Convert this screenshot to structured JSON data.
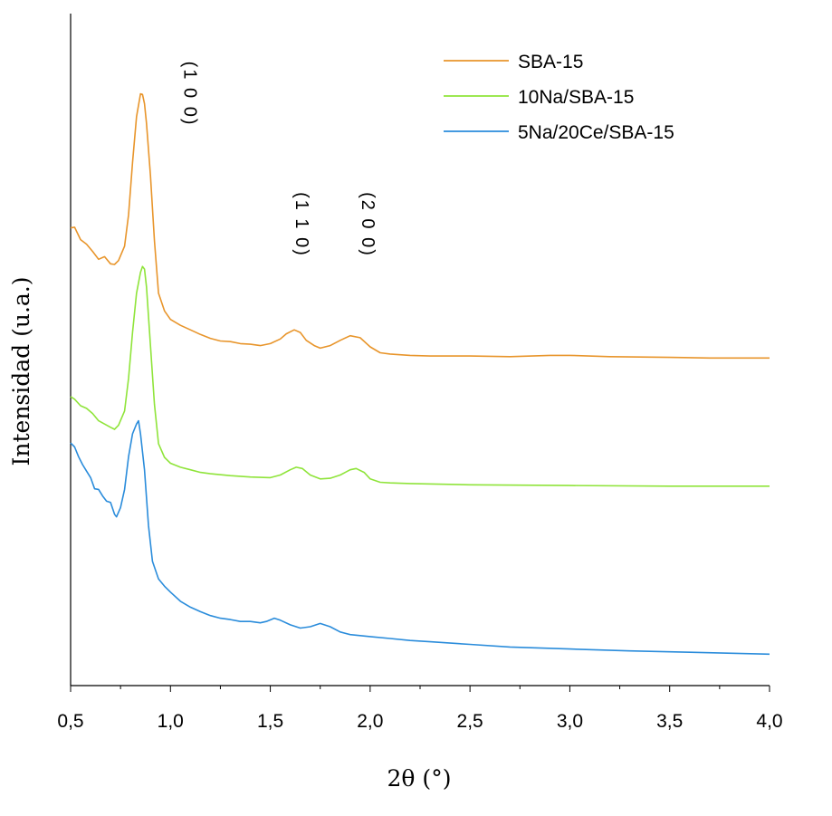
{
  "chart_data": {
    "type": "line",
    "xlabel": "2θ (°)",
    "ylabel": "Intensidad (u.a.)",
    "xlim": [
      0.5,
      4.0
    ],
    "x_ticks": [
      0.5,
      1.0,
      1.5,
      2.0,
      2.5,
      3.0,
      3.5,
      4.0
    ],
    "x_tick_labels": [
      "0,5",
      "1,0",
      "1,5",
      "2,0",
      "2,5",
      "3,0",
      "3,5",
      "4,0"
    ],
    "y_ticks_shown": false,
    "ylim": [
      0,
      1
    ],
    "grid": false,
    "legend_position": "top-right",
    "annotations": [
      {
        "text": "(1 0 0)",
        "x": 1.07,
        "y": 0.905
      },
      {
        "text": "(1 1 0)",
        "x": 1.63,
        "y": 0.705
      },
      {
        "text": "(2 0 0)",
        "x": 1.96,
        "y": 0.705
      }
    ],
    "series": [
      {
        "name": "SBA-15",
        "color": "#E8952B",
        "points": [
          [
            0.5,
            0.7
          ],
          [
            0.52,
            0.701
          ],
          [
            0.55,
            0.682
          ],
          [
            0.58,
            0.675
          ],
          [
            0.61,
            0.664
          ],
          [
            0.64,
            0.652
          ],
          [
            0.67,
            0.656
          ],
          [
            0.7,
            0.645
          ],
          [
            0.72,
            0.644
          ],
          [
            0.74,
            0.65
          ],
          [
            0.77,
            0.672
          ],
          [
            0.79,
            0.72
          ],
          [
            0.81,
            0.8
          ],
          [
            0.83,
            0.87
          ],
          [
            0.85,
            0.905
          ],
          [
            0.86,
            0.904
          ],
          [
            0.87,
            0.89
          ],
          [
            0.88,
            0.86
          ],
          [
            0.9,
            0.78
          ],
          [
            0.92,
            0.68
          ],
          [
            0.94,
            0.6
          ],
          [
            0.97,
            0.573
          ],
          [
            1.0,
            0.56
          ],
          [
            1.05,
            0.551
          ],
          [
            1.1,
            0.544
          ],
          [
            1.15,
            0.537
          ],
          [
            1.2,
            0.531
          ],
          [
            1.25,
            0.527
          ],
          [
            1.3,
            0.526
          ],
          [
            1.35,
            0.523
          ],
          [
            1.4,
            0.522
          ],
          [
            1.45,
            0.52
          ],
          [
            1.5,
            0.523
          ],
          [
            1.55,
            0.53
          ],
          [
            1.58,
            0.538
          ],
          [
            1.62,
            0.544
          ],
          [
            1.65,
            0.54
          ],
          [
            1.68,
            0.528
          ],
          [
            1.72,
            0.52
          ],
          [
            1.75,
            0.516
          ],
          [
            1.8,
            0.52
          ],
          [
            1.85,
            0.528
          ],
          [
            1.9,
            0.535
          ],
          [
            1.95,
            0.532
          ],
          [
            2.0,
            0.518
          ],
          [
            2.05,
            0.509
          ],
          [
            2.1,
            0.507
          ],
          [
            2.2,
            0.505
          ],
          [
            2.3,
            0.504
          ],
          [
            2.5,
            0.504
          ],
          [
            2.7,
            0.503
          ],
          [
            2.9,
            0.505
          ],
          [
            3.0,
            0.505
          ],
          [
            3.2,
            0.503
          ],
          [
            3.5,
            0.502
          ],
          [
            3.7,
            0.501
          ],
          [
            4.0,
            0.501
          ]
        ]
      },
      {
        "name": "10Na/SBA-15",
        "color": "#8FE43A",
        "points": [
          [
            0.5,
            0.442
          ],
          [
            0.52,
            0.438
          ],
          [
            0.55,
            0.428
          ],
          [
            0.58,
            0.424
          ],
          [
            0.61,
            0.416
          ],
          [
            0.64,
            0.405
          ],
          [
            0.67,
            0.4
          ],
          [
            0.7,
            0.395
          ],
          [
            0.72,
            0.392
          ],
          [
            0.74,
            0.398
          ],
          [
            0.77,
            0.42
          ],
          [
            0.79,
            0.47
          ],
          [
            0.81,
            0.54
          ],
          [
            0.83,
            0.6
          ],
          [
            0.85,
            0.632
          ],
          [
            0.86,
            0.641
          ],
          [
            0.87,
            0.637
          ],
          [
            0.88,
            0.61
          ],
          [
            0.9,
            0.52
          ],
          [
            0.92,
            0.43
          ],
          [
            0.94,
            0.37
          ],
          [
            0.97,
            0.349
          ],
          [
            1.0,
            0.34
          ],
          [
            1.05,
            0.334
          ],
          [
            1.1,
            0.33
          ],
          [
            1.15,
            0.326
          ],
          [
            1.2,
            0.324
          ],
          [
            1.3,
            0.321
          ],
          [
            1.4,
            0.319
          ],
          [
            1.5,
            0.318
          ],
          [
            1.55,
            0.322
          ],
          [
            1.6,
            0.33
          ],
          [
            1.63,
            0.334
          ],
          [
            1.66,
            0.332
          ],
          [
            1.7,
            0.322
          ],
          [
            1.75,
            0.316
          ],
          [
            1.8,
            0.317
          ],
          [
            1.85,
            0.322
          ],
          [
            1.9,
            0.33
          ],
          [
            1.93,
            0.332
          ],
          [
            1.97,
            0.326
          ],
          [
            2.0,
            0.316
          ],
          [
            2.05,
            0.311
          ],
          [
            2.1,
            0.31
          ],
          [
            2.2,
            0.309
          ],
          [
            2.5,
            0.307
          ],
          [
            3.0,
            0.306
          ],
          [
            3.5,
            0.305
          ],
          [
            4.0,
            0.305
          ]
        ]
      },
      {
        "name": "5Na/20Ce/SBA-15",
        "color": "#2A8CDB",
        "points": [
          [
            0.5,
            0.371
          ],
          [
            0.52,
            0.365
          ],
          [
            0.54,
            0.35
          ],
          [
            0.56,
            0.338
          ],
          [
            0.58,
            0.328
          ],
          [
            0.6,
            0.318
          ],
          [
            0.62,
            0.301
          ],
          [
            0.64,
            0.3
          ],
          [
            0.66,
            0.29
          ],
          [
            0.68,
            0.282
          ],
          [
            0.7,
            0.28
          ],
          [
            0.72,
            0.262
          ],
          [
            0.73,
            0.258
          ],
          [
            0.75,
            0.272
          ],
          [
            0.77,
            0.3
          ],
          [
            0.79,
            0.35
          ],
          [
            0.81,
            0.385
          ],
          [
            0.83,
            0.4
          ],
          [
            0.84,
            0.405
          ],
          [
            0.85,
            0.385
          ],
          [
            0.87,
            0.33
          ],
          [
            0.89,
            0.245
          ],
          [
            0.91,
            0.19
          ],
          [
            0.94,
            0.163
          ],
          [
            0.97,
            0.152
          ],
          [
            1.0,
            0.143
          ],
          [
            1.05,
            0.129
          ],
          [
            1.1,
            0.12
          ],
          [
            1.15,
            0.113
          ],
          [
            1.2,
            0.107
          ],
          [
            1.25,
            0.103
          ],
          [
            1.3,
            0.101
          ],
          [
            1.35,
            0.098
          ],
          [
            1.4,
            0.098
          ],
          [
            1.45,
            0.096
          ],
          [
            1.48,
            0.098
          ],
          [
            1.52,
            0.103
          ],
          [
            1.55,
            0.1
          ],
          [
            1.6,
            0.093
          ],
          [
            1.65,
            0.088
          ],
          [
            1.7,
            0.09
          ],
          [
            1.75,
            0.095
          ],
          [
            1.8,
            0.09
          ],
          [
            1.85,
            0.082
          ],
          [
            1.9,
            0.078
          ],
          [
            2.0,
            0.075
          ],
          [
            2.1,
            0.072
          ],
          [
            2.2,
            0.069
          ],
          [
            2.3,
            0.067
          ],
          [
            2.5,
            0.063
          ],
          [
            2.7,
            0.059
          ],
          [
            3.0,
            0.056
          ],
          [
            3.3,
            0.053
          ],
          [
            3.6,
            0.051
          ],
          [
            4.0,
            0.048
          ]
        ]
      }
    ]
  }
}
